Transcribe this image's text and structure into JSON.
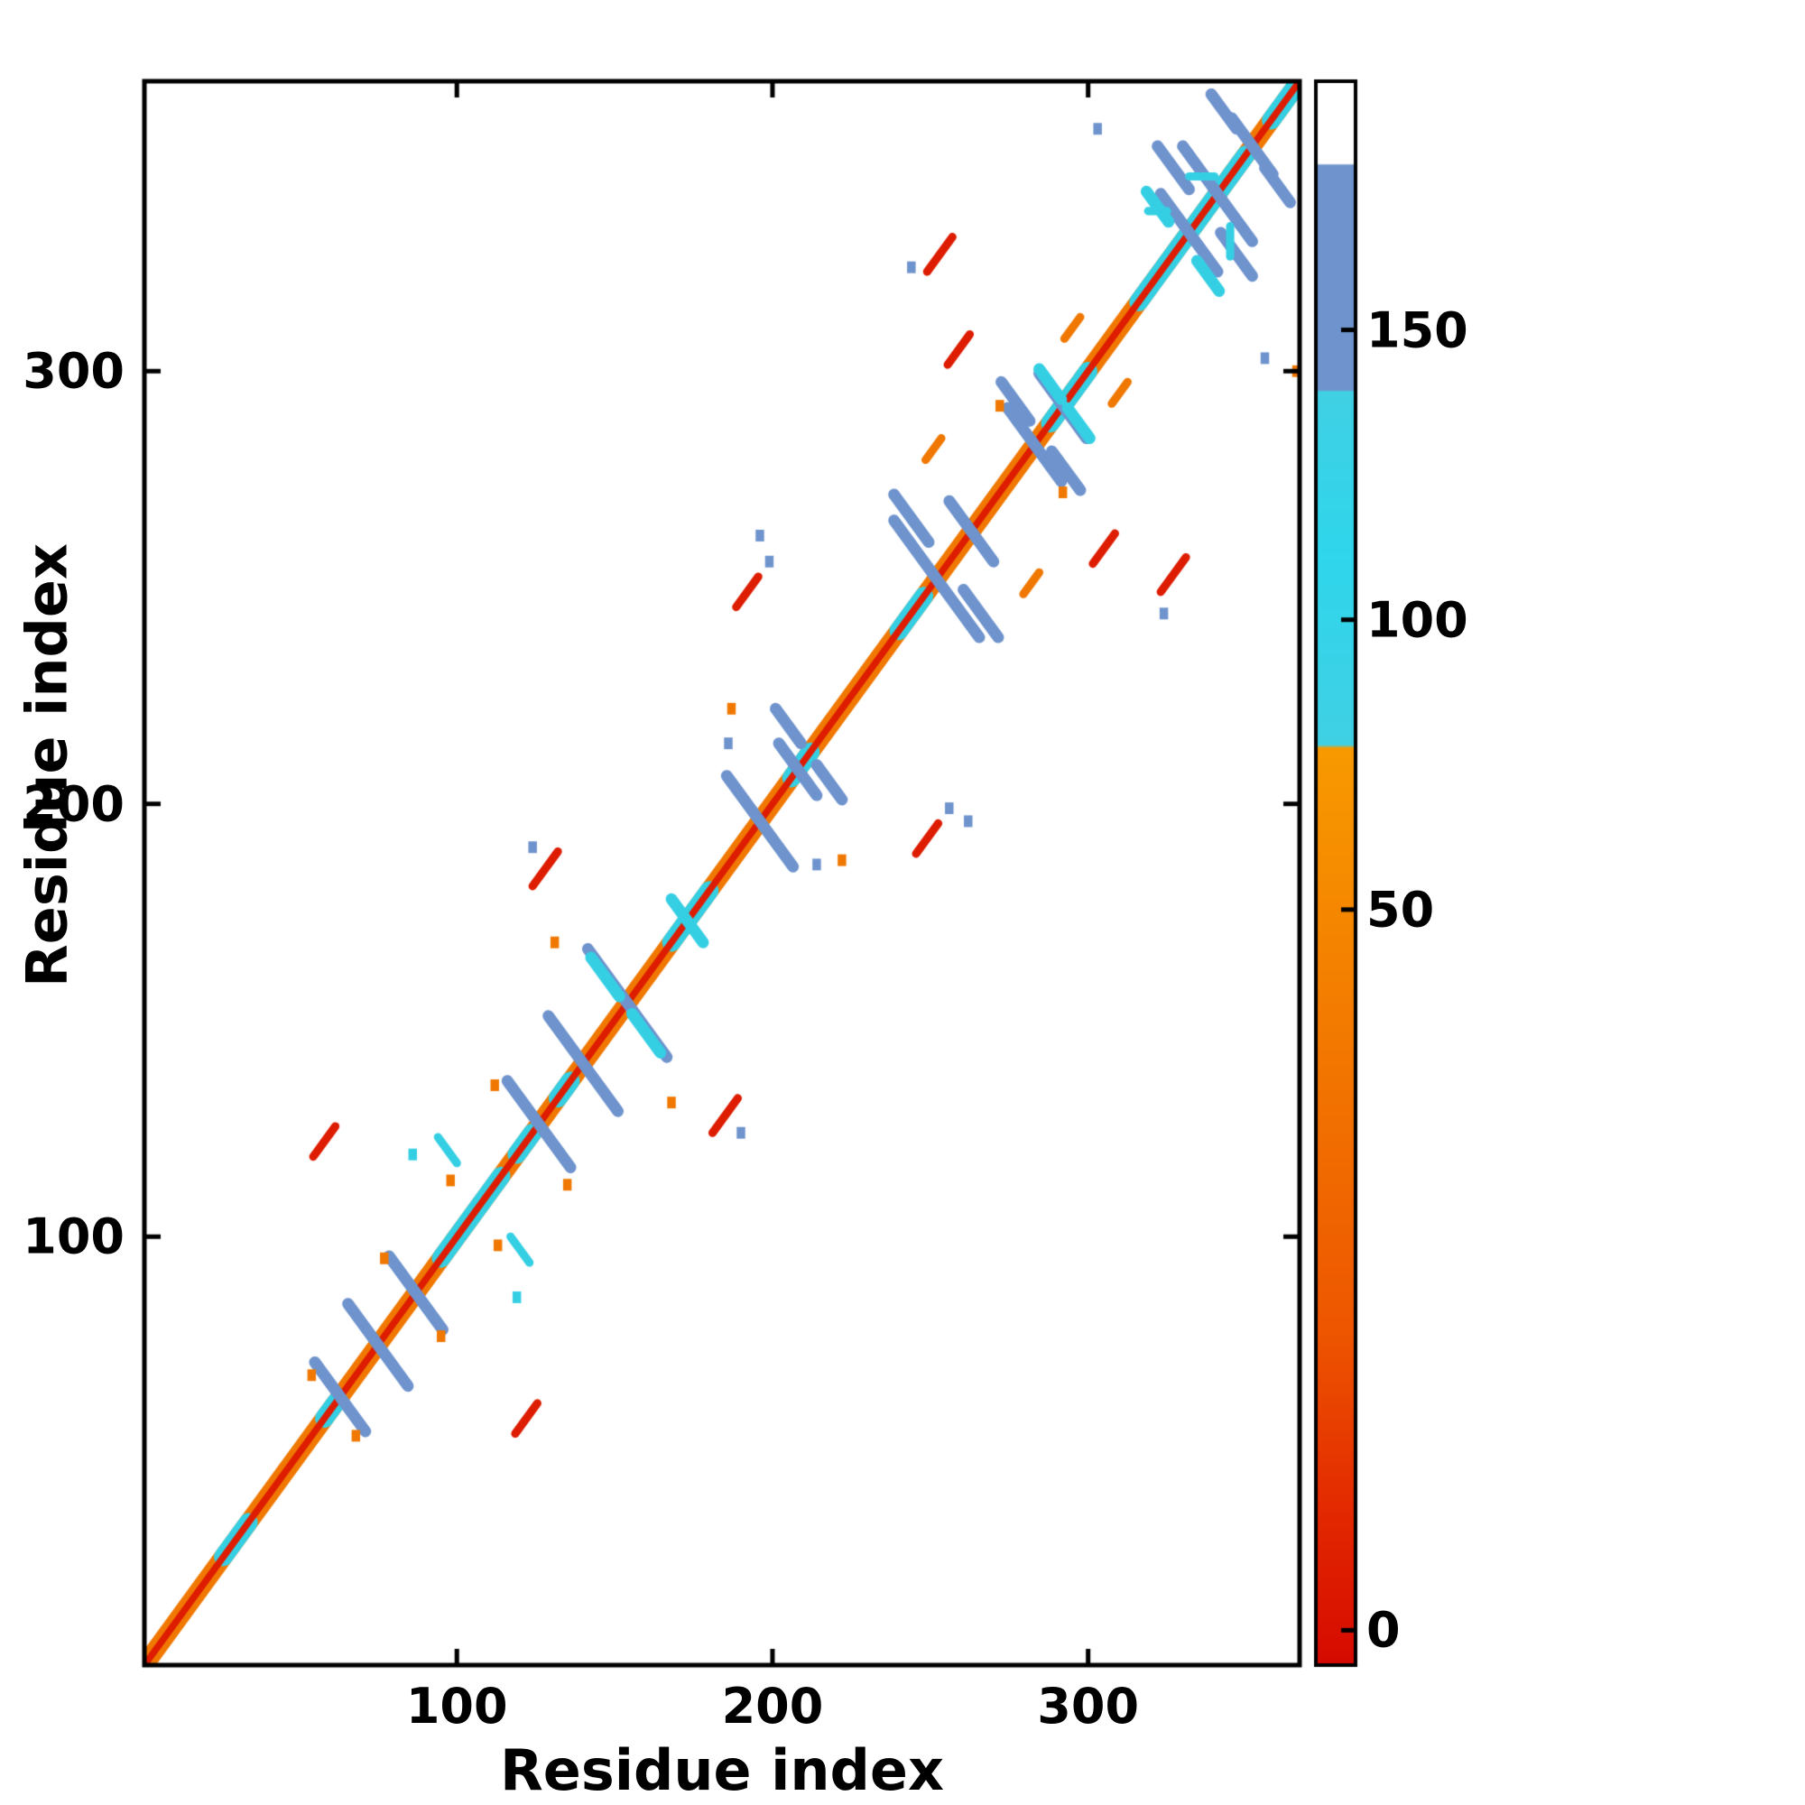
{
  "chart_data": {
    "type": "heatmap",
    "title": "",
    "xlabel": "Residue index",
    "ylabel": "Residue index",
    "xlim": [
      1,
      367
    ],
    "ylim": [
      1,
      367
    ],
    "xticks": [
      100,
      200,
      300
    ],
    "yticks": [
      100,
      200,
      300
    ],
    "grid": false,
    "palette": {
      "red": "#dd1c00",
      "orange": "#f07800",
      "cyan": "#35cfe4",
      "blue": "#6e93cd",
      "frame": "#000000",
      "background": "#ffffff"
    },
    "colorbar": {
      "position": "right",
      "tick_values": [
        0,
        50,
        100,
        150
      ],
      "ticks": [
        {
          "label": "150",
          "f": 0.157
        },
        {
          "label": "100",
          "f": 0.34
        },
        {
          "label": "50",
          "f": 0.523
        },
        {
          "label": "0",
          "f": 0.978
        }
      ],
      "stops": [
        {
          "f": 0.0,
          "c": "#ffffff"
        },
        {
          "f": 0.052,
          "c": "#ffffff"
        },
        {
          "f": 0.053,
          "c": "#6e93cd"
        },
        {
          "f": 0.195,
          "c": "#6e93cd"
        },
        {
          "f": 0.196,
          "c": "#40d0e4"
        },
        {
          "f": 0.3,
          "c": "#2fd6ec"
        },
        {
          "f": 0.419,
          "c": "#40d0e4"
        },
        {
          "f": 0.421,
          "c": "#f89a00"
        },
        {
          "f": 0.6,
          "c": "#f37a00"
        },
        {
          "f": 0.79,
          "c": "#ee5600"
        },
        {
          "f": 0.9,
          "c": "#e32a00"
        },
        {
          "f": 1.0,
          "c": "#d60a00"
        }
      ]
    },
    "diagonal": {
      "center_color": "red",
      "center_width": 1.8,
      "flank_color": "orange",
      "flank_width": 5.0
    },
    "diagonal_cyan_segments": [
      [
        26,
        34
      ],
      [
        58,
        62
      ],
      [
        95,
        114
      ],
      [
        119,
        124
      ],
      [
        132,
        136
      ],
      [
        168,
        180
      ],
      [
        206,
        212
      ],
      [
        240,
        248
      ],
      [
        288,
        300
      ],
      [
        316,
        350
      ],
      [
        358,
        367
      ]
    ],
    "hairpin_streaks": [
      {
        "cx": 63,
        "cy": 63,
        "len": 16
      },
      {
        "cx": 75,
        "cy": 75,
        "len": 19
      },
      {
        "cx": 87,
        "cy": 87,
        "len": 17
      },
      {
        "cx": 126,
        "cy": 126,
        "len": 20
      },
      {
        "cx": 140,
        "cy": 140,
        "len": 22
      },
      {
        "cx": 154,
        "cy": 154,
        "len": 25
      },
      {
        "cx": 196,
        "cy": 196,
        "len": 21
      },
      {
        "cx": 208,
        "cy": 208,
        "len": 12
      },
      {
        "cx": 218,
        "cy": 205,
        "len": 8
      },
      {
        "cx": 252,
        "cy": 252,
        "len": 27
      },
      {
        "cx": 263,
        "cy": 263,
        "len": 14
      },
      {
        "cx": 266,
        "cy": 244,
        "len": 11
      },
      {
        "cx": 283,
        "cy": 283,
        "len": 17
      },
      {
        "cx": 292,
        "cy": 292,
        "len": 15
      },
      {
        "cx": 293,
        "cy": 277,
        "len": 9
      },
      {
        "cx": 332,
        "cy": 332,
        "len": 18
      },
      {
        "cx": 341,
        "cy": 341,
        "len": 22
      },
      {
        "cx": 352,
        "cy": 352,
        "len": 13
      },
      {
        "cx": 347,
        "cy": 327,
        "len": 10
      },
      {
        "cx": 360,
        "cy": 343,
        "len": 8
      },
      {
        "cx": 160,
        "cy": 147,
        "len": 9,
        "c": "cyan"
      },
      {
        "cx": 173,
        "cy": 173,
        "len": 10,
        "c": "cyan"
      },
      {
        "cx": 297,
        "cy": 288,
        "len": 7,
        "c": "cyan"
      },
      {
        "cx": 338,
        "cy": 322,
        "len": 7,
        "c": "cyan"
      }
    ],
    "marks": [
      {
        "x": 122,
        "y": 58,
        "c": "red",
        "s": "diag",
        "len": 7,
        "m": 1
      },
      {
        "x": 185,
        "y": 128,
        "c": "red",
        "s": "diag",
        "len": 8,
        "m": 1
      },
      {
        "x": 249,
        "y": 192,
        "c": "red",
        "s": "diag",
        "len": 7,
        "m": 1
      },
      {
        "x": 305,
        "y": 259,
        "c": "red",
        "s": "diag",
        "len": 7,
        "m": 1
      },
      {
        "x": 327,
        "y": 253,
        "c": "red",
        "s": "diag",
        "len": 8,
        "m": 1
      },
      {
        "x": 68,
        "y": 54,
        "c": "orange",
        "s": "dot",
        "m": 1
      },
      {
        "x": 95,
        "y": 77,
        "c": "orange",
        "s": "dot",
        "m": 1
      },
      {
        "x": 113,
        "y": 98,
        "c": "orange",
        "s": "dot",
        "m": 1
      },
      {
        "x": 135,
        "y": 112,
        "c": "orange",
        "s": "dot",
        "m": 1
      },
      {
        "x": 168,
        "y": 131,
        "c": "orange",
        "s": "dot",
        "m": 1
      },
      {
        "x": 222,
        "y": 187,
        "c": "orange",
        "s": "dot",
        "m": 1
      },
      {
        "x": 282,
        "y": 251,
        "c": "orange",
        "s": "diag",
        "len": 5,
        "m": 1
      },
      {
        "x": 292,
        "y": 272,
        "c": "orange",
        "s": "dot",
        "m": 1
      },
      {
        "x": 310,
        "y": 295,
        "c": "orange",
        "s": "diag",
        "len": 5,
        "m": 1
      },
      {
        "x": 366,
        "y": 300,
        "c": "orange",
        "s": "dot",
        "m": 0
      },
      {
        "x": 120,
        "y": 97,
        "c": "cyan",
        "s": "anti",
        "len": 6,
        "m": 1
      },
      {
        "x": 119,
        "y": 86,
        "c": "cyan",
        "s": "dot",
        "m": 1
      },
      {
        "x": 190,
        "y": 124,
        "c": "blue",
        "s": "dot",
        "m": 1
      },
      {
        "x": 214,
        "y": 186,
        "c": "blue",
        "s": "dot",
        "m": 1
      },
      {
        "x": 262,
        "y": 196,
        "c": "blue",
        "s": "dot",
        "m": 1
      },
      {
        "x": 256,
        "y": 199,
        "c": "blue",
        "s": "dot",
        "m": 1
      },
      {
        "x": 324,
        "y": 244,
        "c": "blue",
        "s": "dot",
        "m": 1
      },
      {
        "x": 356,
        "y": 303,
        "c": "blue",
        "s": "dot",
        "m": 1
      },
      {
        "x": 336,
        "y": 345,
        "c": "cyan",
        "s": "h",
        "len": 8,
        "m": 0
      },
      {
        "x": 322,
        "y": 337,
        "c": "cyan",
        "s": "h",
        "len": 6,
        "m": 0
      },
      {
        "x": 345,
        "y": 330,
        "c": "cyan",
        "s": "v",
        "len": 7,
        "m": 0
      }
    ]
  }
}
